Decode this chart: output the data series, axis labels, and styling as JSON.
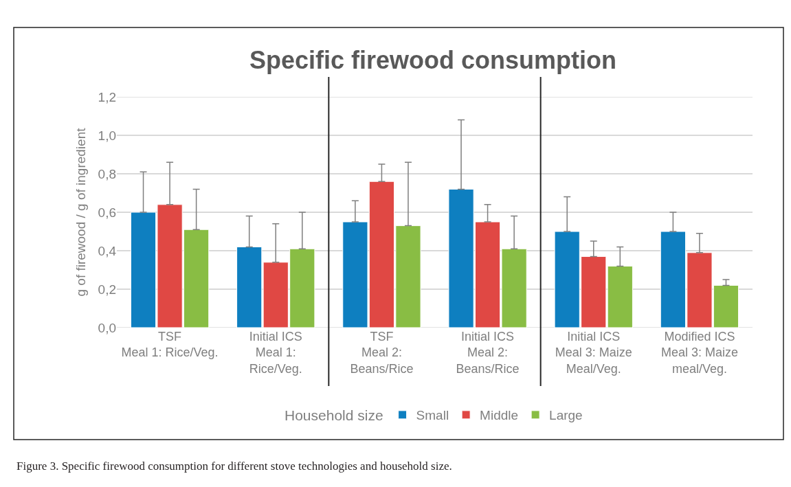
{
  "chart_data": {
    "type": "bar",
    "title": "Specific firewood consumption",
    "ylabel": "g of firewood / g of ingredient",
    "legend_title": "Household size",
    "categories": [
      "TSF\nMeal 1: Rice/Veg.",
      "Initial ICS\nMeal 1:\nRice/Veg.",
      "TSF\nMeal 2:\nBeans/Rice",
      "Initial ICS\nMeal 2:\nBeans/Rice",
      "Initial ICS\nMeal 3: Maize\nMeal/Veg.",
      "Modified ICS\nMeal 3: Maize\nmeal/Veg."
    ],
    "series": [
      {
        "name": "Small",
        "color": "#0e7fc0",
        "values": [
          0.6,
          0.42,
          0.55,
          0.72,
          0.5,
          0.5
        ],
        "errors": [
          [
            0.6,
            0.81
          ],
          [
            0.42,
            0.58
          ],
          [
            0.55,
            0.66
          ],
          [
            0.72,
            1.08
          ],
          [
            0.5,
            0.68
          ],
          [
            0.5,
            0.6
          ]
        ]
      },
      {
        "name": "Middle",
        "color": "#e04844",
        "values": [
          0.64,
          0.34,
          0.76,
          0.55,
          0.37,
          0.39
        ],
        "errors": [
          [
            0.64,
            0.86
          ],
          [
            0.34,
            0.54
          ],
          [
            0.76,
            0.85
          ],
          [
            0.55,
            0.64
          ],
          [
            0.37,
            0.45
          ],
          [
            0.39,
            0.49
          ]
        ]
      },
      {
        "name": "Large",
        "color": "#89bd44",
        "values": [
          0.51,
          0.41,
          0.53,
          0.41,
          0.32,
          0.22
        ],
        "errors": [
          [
            0.51,
            0.72
          ],
          [
            0.41,
            0.6
          ],
          [
            0.53,
            0.86
          ],
          [
            0.41,
            0.58
          ],
          [
            0.32,
            0.42
          ],
          [
            0.22,
            0.25
          ]
        ]
      }
    ],
    "ylim": [
      0,
      1.2
    ],
    "yticks": [
      {
        "value": 0,
        "label": "0,0"
      },
      {
        "value": 0.2,
        "label": "0,2"
      },
      {
        "value": 0.4,
        "label": "0,4"
      },
      {
        "value": 0.6,
        "label": "0,6"
      },
      {
        "value": 0.8,
        "label": "0,8"
      },
      {
        "value": 1.0,
        "label": "1,0"
      },
      {
        "value": 1.2,
        "label": "1,2"
      }
    ],
    "grid": "y",
    "legend": "bottom",
    "annotations": [
      "Figure 3. Specific firewood consumption for different stove technologies and household size."
    ]
  }
}
